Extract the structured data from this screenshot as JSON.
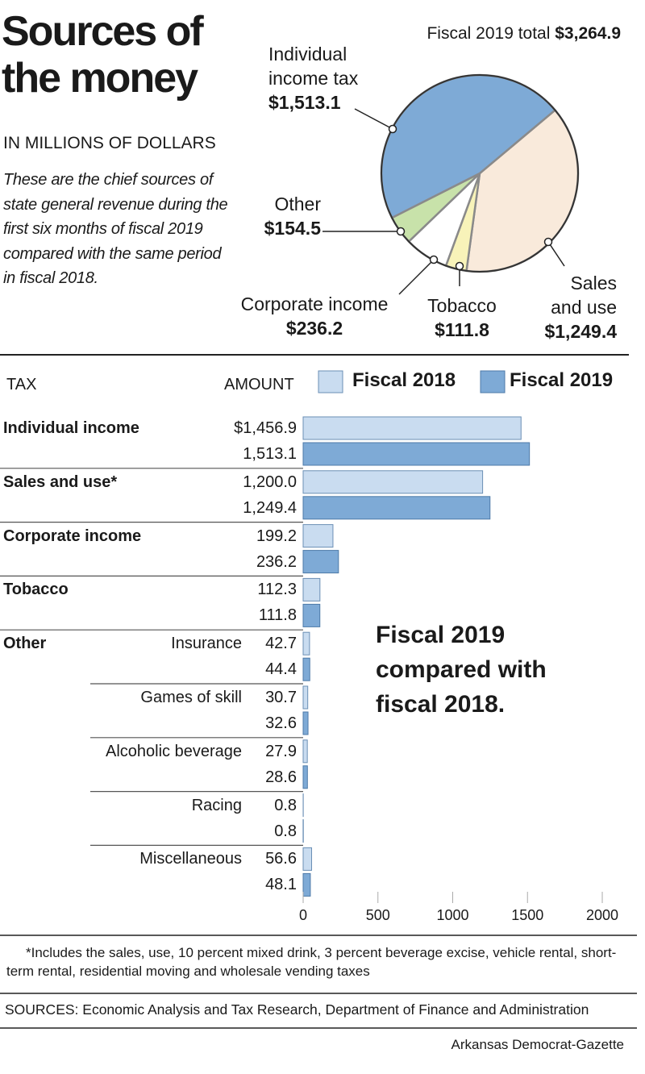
{
  "title": "Sources of the money",
  "units": "IN MILLIONS OF DOLLARS",
  "description": "These are the chief sources of state general revenue during the first six months of fiscal 2019 compared with the same period in fiscal 2018.",
  "footnote": "*Includes the sales, use, 10 percent mixed drink, 3 percent beverage excise, vehicle rental, short-term rental, residential moving and wholesale vending taxes",
  "sources": "SOURCES: Economic Analysis and Tax Research, Department of Finance and Administration",
  "credit": "Arkansas Democrat-Gazette",
  "chart_data": [
    {
      "type": "pie",
      "total_text": "Fiscal 2019 total",
      "total": 3264.9,
      "total_label": "$3,264.9",
      "categories": [
        "Sales and use",
        "Tobacco",
        "Corporate income",
        "Other",
        "Individual income tax"
      ],
      "values": [
        1249.4,
        111.8,
        236.2,
        154.5,
        1513.1
      ],
      "value_labels": [
        "$1,249.4",
        "$111.8",
        "$236.2",
        "$154.5",
        "$1,513.1"
      ],
      "colors": [
        "#f9eadb",
        "#f8f3b9",
        "#ffffff",
        "#c8e2aa",
        "#7eaad6"
      ]
    },
    {
      "type": "bar",
      "orientation": "horizontal",
      "column_headers": [
        "TAX",
        "AMOUNT"
      ],
      "group_label": "Other",
      "categories": [
        "Individual income",
        "Sales and use*",
        "Corporate income",
        "Tobacco",
        "Insurance",
        "Games of skill",
        "Alcoholic beverage",
        "Racing",
        "Miscellaneous"
      ],
      "series": [
        {
          "name": "Fiscal 2018",
          "color": "#c9dcf0",
          "values": [
            1456.9,
            1200.0,
            199.2,
            112.3,
            42.7,
            30.7,
            27.9,
            0.8,
            56.6
          ],
          "value_labels": [
            "$1,456.9",
            "1,200.0",
            "199.2",
            "112.3",
            "42.7",
            "30.7",
            "27.9",
            "0.8",
            "56.6"
          ]
        },
        {
          "name": "Fiscal 2019",
          "color": "#7eaad6",
          "values": [
            1513.1,
            1249.4,
            236.2,
            111.8,
            44.4,
            32.6,
            28.6,
            0.8,
            48.1
          ],
          "value_labels": [
            "1,513.1",
            "1,249.4",
            "236.2",
            "111.8",
            "44.4",
            "32.6",
            "28.6",
            "0.8",
            "48.1"
          ]
        }
      ],
      "xlim": [
        0,
        2000
      ],
      "xticks": [
        0,
        500,
        1000,
        1500,
        2000
      ],
      "annotation": "Fiscal 2019 compared with fiscal 2018."
    }
  ]
}
